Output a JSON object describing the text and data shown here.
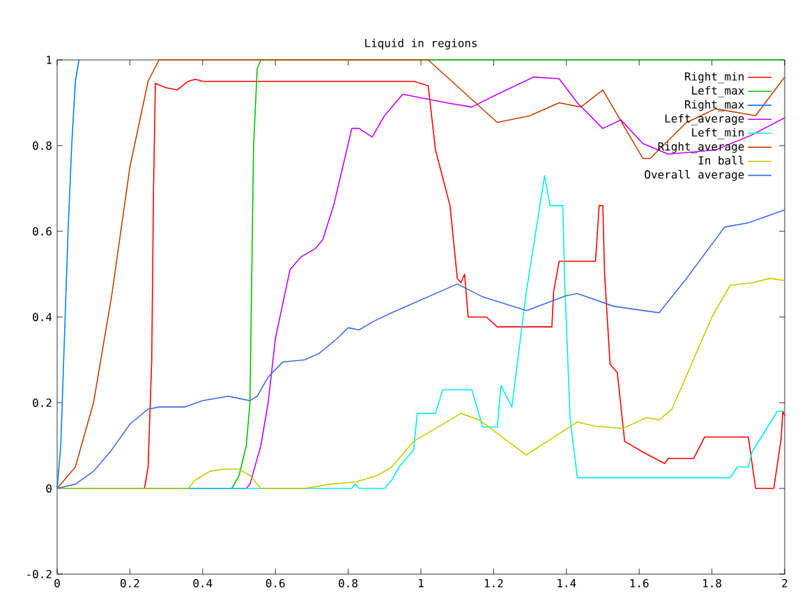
{
  "chart_data": {
    "type": "line",
    "title": "Liquid in regions",
    "xlim": [
      0,
      2
    ],
    "ylim": [
      -0.2,
      1
    ],
    "xticks": [
      0,
      0.2,
      0.4,
      0.6,
      0.8,
      1,
      1.2,
      1.4,
      1.6,
      1.8,
      2
    ],
    "yticks": [
      -0.2,
      0,
      0.2,
      0.4,
      0.6,
      0.8,
      1
    ],
    "grid": false,
    "legend": "top right",
    "series": [
      {
        "name": "Right_min",
        "color": "#ff0000",
        "x": [
          0,
          0.24,
          0.25,
          0.26,
          0.265,
          0.27,
          0.3,
          0.33,
          0.36,
          0.38,
          0.4,
          0.98,
          1.02,
          1.04,
          1.08,
          1.1,
          1.11,
          1.12,
          1.13,
          1.18,
          1.21,
          1.36,
          1.365,
          1.38,
          1.48,
          1.49,
          1.5,
          1.505,
          1.52,
          1.54,
          1.56,
          1.61,
          1.67,
          1.68,
          1.75,
          1.78,
          1.9,
          1.92,
          1.97,
          1.99,
          1.995,
          2
        ],
        "values": [
          0,
          0,
          0.05,
          0.3,
          0.7,
          0.945,
          0.935,
          0.93,
          0.95,
          0.955,
          0.95,
          0.95,
          0.94,
          0.79,
          0.66,
          0.49,
          0.48,
          0.5,
          0.4,
          0.4,
          0.377,
          0.377,
          0.46,
          0.53,
          0.53,
          0.66,
          0.66,
          0.5,
          0.29,
          0.27,
          0.11,
          0.085,
          0.058,
          0.07,
          0.07,
          0.12,
          0.12,
          0,
          0,
          0.115,
          0.18,
          0.17
        ]
      },
      {
        "name": "Left_max",
        "color": "#00c000",
        "x": [
          0,
          0.48,
          0.5,
          0.52,
          0.53,
          0.535,
          0.54,
          0.55,
          0.56,
          2
        ],
        "values": [
          0,
          0,
          0.03,
          0.1,
          0.2,
          0.5,
          0.8,
          0.98,
          1,
          1
        ]
      },
      {
        "name": "Right_max",
        "color": "#0080ff",
        "x": [
          0,
          0.01,
          0.02,
          0.03,
          0.04,
          0.05,
          0.06
        ],
        "values": [
          0,
          0.1,
          0.35,
          0.6,
          0.8,
          0.95,
          1
        ]
      },
      {
        "name": "Left_average",
        "color": "#c000ff",
        "x": [
          0,
          0.52,
          0.53,
          0.56,
          0.58,
          0.6,
          0.64,
          0.67,
          0.71,
          0.73,
          0.76,
          0.81,
          0.83,
          0.866,
          0.9,
          0.95,
          1.07,
          1.14,
          1.21,
          1.31,
          1.38,
          1.43,
          1.5,
          1.55,
          1.61,
          1.68,
          1.81,
          1.91,
          2
        ],
        "values": [
          0,
          0,
          0.01,
          0.1,
          0.2,
          0.35,
          0.51,
          0.54,
          0.56,
          0.58,
          0.66,
          0.84,
          0.84,
          0.82,
          0.87,
          0.92,
          0.9,
          0.89,
          0.92,
          0.96,
          0.956,
          0.9,
          0.84,
          0.86,
          0.805,
          0.78,
          0.79,
          0.825,
          0.865
        ]
      },
      {
        "name": "Left_min",
        "color": "#00eeee",
        "x": [
          0,
          0.81,
          0.82,
          0.83,
          0.9,
          0.92,
          0.94,
          0.98,
          0.99,
          1.04,
          1.06,
          1.14,
          1.17,
          1.21,
          1.22,
          1.25,
          1.29,
          1.34,
          1.355,
          1.39,
          1.395,
          1.41,
          1.43,
          1.85,
          1.87,
          1.9,
          1.91,
          1.98,
          2
        ],
        "values": [
          0,
          0,
          0.01,
          0,
          0,
          0.02,
          0.05,
          0.09,
          0.175,
          0.175,
          0.23,
          0.23,
          0.143,
          0.143,
          0.24,
          0.19,
          0.46,
          0.73,
          0.66,
          0.66,
          0.49,
          0.165,
          0.025,
          0.025,
          0.05,
          0.05,
          0.085,
          0.18,
          0.18
        ]
      },
      {
        "name": "Right_average",
        "color": "#c04000",
        "x": [
          0,
          0.05,
          0.1,
          0.15,
          0.2,
          0.25,
          0.28,
          1.02,
          1.21,
          1.3,
          1.38,
          1.44,
          1.5,
          1.61,
          1.63,
          1.73,
          1.81,
          1.92,
          2
        ],
        "values": [
          0,
          0.05,
          0.2,
          0.45,
          0.75,
          0.95,
          1,
          1,
          0.854,
          0.87,
          0.9,
          0.89,
          0.93,
          0.77,
          0.77,
          0.854,
          0.886,
          0.87,
          0.96
        ]
      },
      {
        "name": "In ball",
        "color": "#c8c800",
        "x": [
          0,
          0.36,
          0.38,
          0.42,
          0.46,
          0.5,
          0.53,
          0.56,
          0.68,
          0.75,
          0.82,
          0.88,
          0.92,
          0.98,
          1.11,
          1.16,
          1.29,
          1.36,
          1.43,
          1.48,
          1.555,
          1.62,
          1.655,
          1.69,
          1.8,
          1.85,
          1.91,
          1.96,
          2
        ],
        "values": [
          0,
          0,
          0.02,
          0.04,
          0.045,
          0.045,
          0.03,
          0,
          0,
          0.01,
          0.015,
          0.03,
          0.05,
          0.11,
          0.175,
          0.16,
          0.078,
          0.117,
          0.155,
          0.145,
          0.14,
          0.165,
          0.16,
          0.185,
          0.4,
          0.474,
          0.48,
          0.49,
          0.485
        ]
      },
      {
        "name": "Overall average",
        "color": "#4169e1",
        "x": [
          0,
          0.05,
          0.1,
          0.15,
          0.2,
          0.25,
          0.28,
          0.35,
          0.4,
          0.47,
          0.5,
          0.53,
          0.55,
          0.58,
          0.62,
          0.68,
          0.72,
          0.77,
          0.8,
          0.83,
          0.87,
          0.92,
          1.1,
          1.17,
          1.29,
          1.4,
          1.43,
          1.53,
          1.655,
          1.73,
          1.835,
          1.9,
          2
        ],
        "values": [
          0,
          0.01,
          0.04,
          0.09,
          0.15,
          0.185,
          0.19,
          0.19,
          0.205,
          0.215,
          0.21,
          0.205,
          0.215,
          0.26,
          0.295,
          0.3,
          0.315,
          0.35,
          0.375,
          0.37,
          0.39,
          0.41,
          0.477,
          0.447,
          0.415,
          0.45,
          0.455,
          0.425,
          0.41,
          0.49,
          0.61,
          0.62,
          0.65
        ]
      }
    ]
  }
}
